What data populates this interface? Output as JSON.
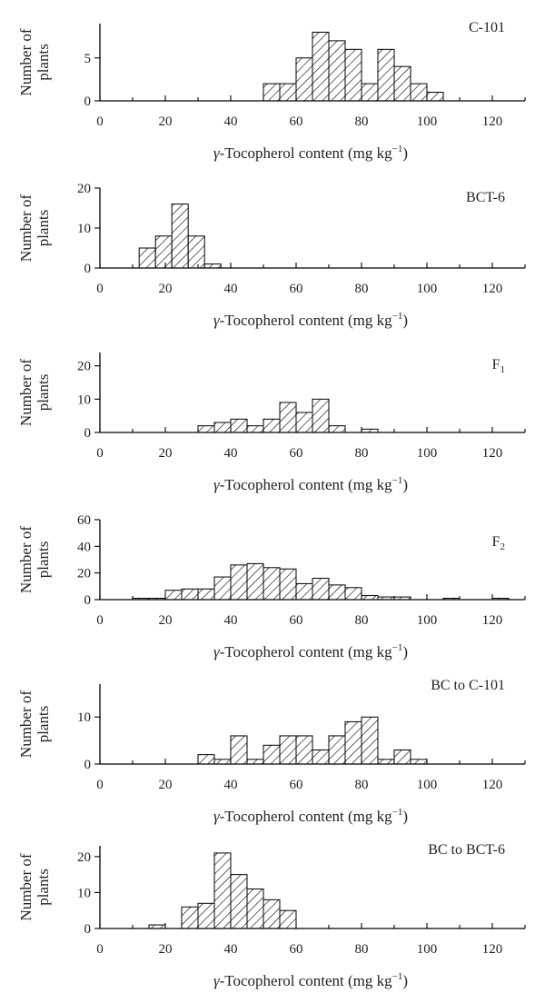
{
  "chart_data": [
    {
      "type": "bar",
      "title": "C-101",
      "title_sub": "",
      "ylabel_lines": [
        "Number of",
        "plants"
      ],
      "xlabel": {
        "greek": "γ",
        "main": "-Tocopherol content (mg kg",
        "sup": "−1",
        "end": ")"
      },
      "xlim": [
        0,
        130
      ],
      "ylim": [
        0,
        9
      ],
      "xticks": [
        "0",
        "20",
        "40",
        "60",
        "80",
        "100",
        "120"
      ],
      "yticks": [
        "0",
        "5"
      ],
      "bin_width": 5,
      "bins": [
        {
          "x": 50,
          "value": 2
        },
        {
          "x": 55,
          "value": 2
        },
        {
          "x": 60,
          "value": 5
        },
        {
          "x": 65,
          "value": 8
        },
        {
          "x": 70,
          "value": 7
        },
        {
          "x": 75,
          "value": 6
        },
        {
          "x": 80,
          "value": 2
        },
        {
          "x": 85,
          "value": 6
        },
        {
          "x": 90,
          "value": 4
        },
        {
          "x": 95,
          "value": 2
        },
        {
          "x": 100,
          "value": 1
        }
      ]
    },
    {
      "type": "bar",
      "title": "BCT-6",
      "title_sub": "",
      "ylabel_lines": [
        "Number of",
        "plants"
      ],
      "xlabel": {
        "greek": "γ",
        "main": "-Tocopherol content (mg kg",
        "sup": "−1",
        "end": ")"
      },
      "xlim": [
        0,
        130
      ],
      "ylim": [
        0,
        20
      ],
      "xticks": [
        "0",
        "20",
        "40",
        "60",
        "80",
        "100",
        "120"
      ],
      "yticks": [
        "0",
        "10",
        "20"
      ],
      "bin_width": 5,
      "bins": [
        {
          "x": 12,
          "value": 5
        },
        {
          "x": 17,
          "value": 8
        },
        {
          "x": 22,
          "value": 16
        },
        {
          "x": 27,
          "value": 8
        },
        {
          "x": 32,
          "value": 1
        }
      ]
    },
    {
      "type": "bar",
      "title": "F",
      "title_sub": "1",
      "ylabel_lines": [
        "Number of",
        "plants"
      ],
      "xlabel": {
        "greek": "γ",
        "main": "-Tocopherol content (mg kg",
        "sup": "−1",
        "end": ")"
      },
      "xlim": [
        0,
        130
      ],
      "ylim": [
        0,
        24
      ],
      "xticks": [
        "0",
        "20",
        "40",
        "60",
        "80",
        "100",
        "120"
      ],
      "yticks": [
        "0",
        "10",
        "20"
      ],
      "bin_width": 5,
      "bins": [
        {
          "x": 30,
          "value": 2
        },
        {
          "x": 35,
          "value": 3
        },
        {
          "x": 40,
          "value": 4
        },
        {
          "x": 45,
          "value": 2
        },
        {
          "x": 50,
          "value": 4
        },
        {
          "x": 55,
          "value": 9
        },
        {
          "x": 60,
          "value": 6
        },
        {
          "x": 65,
          "value": 10
        },
        {
          "x": 70,
          "value": 2
        },
        {
          "x": 80,
          "value": 1
        }
      ]
    },
    {
      "type": "bar",
      "title": "F",
      "title_sub": "2",
      "ylabel_lines": [
        "Number of",
        "plants"
      ],
      "xlabel": {
        "greek": "γ",
        "main": "-Tocopherol content (mg kg",
        "sup": "−1",
        "end": ")"
      },
      "xlim": [
        0,
        130
      ],
      "ylim": [
        0,
        60
      ],
      "xticks": [
        "0",
        "20",
        "40",
        "60",
        "80",
        "100",
        "120"
      ],
      "yticks": [
        "0",
        "20",
        "40",
        "60"
      ],
      "bin_width": 5,
      "bins": [
        {
          "x": 10,
          "value": 1
        },
        {
          "x": 15,
          "value": 1
        },
        {
          "x": 20,
          "value": 7
        },
        {
          "x": 25,
          "value": 8
        },
        {
          "x": 30,
          "value": 8
        },
        {
          "x": 35,
          "value": 17
        },
        {
          "x": 40,
          "value": 26
        },
        {
          "x": 45,
          "value": 27
        },
        {
          "x": 50,
          "value": 24
        },
        {
          "x": 55,
          "value": 23
        },
        {
          "x": 60,
          "value": 12
        },
        {
          "x": 65,
          "value": 16
        },
        {
          "x": 70,
          "value": 11
        },
        {
          "x": 75,
          "value": 9
        },
        {
          "x": 80,
          "value": 3
        },
        {
          "x": 85,
          "value": 2
        },
        {
          "x": 90,
          "value": 2
        },
        {
          "x": 105,
          "value": 1
        },
        {
          "x": 120,
          "value": 1
        }
      ]
    },
    {
      "type": "bar",
      "title": "BC to C-101",
      "title_sub": "",
      "ylabel_lines": [
        "Number of",
        "plants"
      ],
      "xlabel": {
        "greek": "γ",
        "main": "-Tocopherol content (mg kg",
        "sup": "−1",
        "end": ")"
      },
      "xlim": [
        0,
        130
      ],
      "ylim": [
        0,
        17
      ],
      "xticks": [
        "0",
        "20",
        "40",
        "60",
        "80",
        "100",
        "120"
      ],
      "yticks": [
        "0",
        "10"
      ],
      "bin_width": 5,
      "bins": [
        {
          "x": 30,
          "value": 2
        },
        {
          "x": 35,
          "value": 1
        },
        {
          "x": 40,
          "value": 6
        },
        {
          "x": 45,
          "value": 1
        },
        {
          "x": 50,
          "value": 4
        },
        {
          "x": 55,
          "value": 6
        },
        {
          "x": 60,
          "value": 6
        },
        {
          "x": 65,
          "value": 3
        },
        {
          "x": 70,
          "value": 6
        },
        {
          "x": 75,
          "value": 9
        },
        {
          "x": 80,
          "value": 10
        },
        {
          "x": 85,
          "value": 1
        },
        {
          "x": 90,
          "value": 3
        },
        {
          "x": 95,
          "value": 1
        }
      ]
    },
    {
      "type": "bar",
      "title": "BC to BCT-6",
      "title_sub": "",
      "ylabel_lines": [
        "Number of",
        "plants"
      ],
      "xlabel": {
        "greek": "γ",
        "main": "-Tocopherol content (mg kg",
        "sup": "−1",
        "end": ")"
      },
      "xlim": [
        0,
        130
      ],
      "ylim": [
        0,
        23
      ],
      "xticks": [
        "0",
        "20",
        "40",
        "60",
        "80",
        "100",
        "120"
      ],
      "yticks": [
        "0",
        "10",
        "20"
      ],
      "bin_width": 5,
      "bins": [
        {
          "x": 15,
          "value": 1
        },
        {
          "x": 25,
          "value": 6
        },
        {
          "x": 30,
          "value": 7
        },
        {
          "x": 35,
          "value": 21
        },
        {
          "x": 40,
          "value": 15
        },
        {
          "x": 45,
          "value": 11
        },
        {
          "x": 50,
          "value": 8
        },
        {
          "x": 55,
          "value": 5
        }
      ]
    }
  ]
}
